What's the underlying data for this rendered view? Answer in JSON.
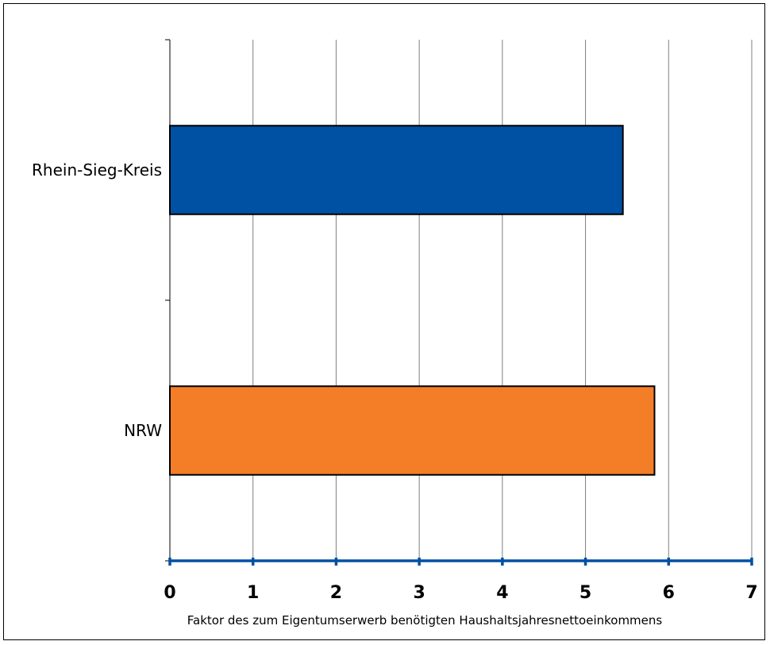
{
  "chart_data": {
    "type": "bar",
    "orientation": "horizontal",
    "title": "",
    "xlabel": "Faktor des zum Eigentumserwerb benötigten Haushaltsjahresnettoeinkommens",
    "ylabel": "",
    "xlim": [
      0,
      7
    ],
    "x_ticks": [
      "0",
      "1",
      "2",
      "3",
      "4",
      "5",
      "6",
      "7"
    ],
    "grid": "vertical",
    "legend": "none",
    "categories": [
      "Rhein-Sieg-Kreis",
      "NRW"
    ],
    "values": [
      5.45,
      5.83
    ],
    "colors": [
      "#0050a4",
      "#f47d28"
    ],
    "axis_color": "#0050a4"
  }
}
